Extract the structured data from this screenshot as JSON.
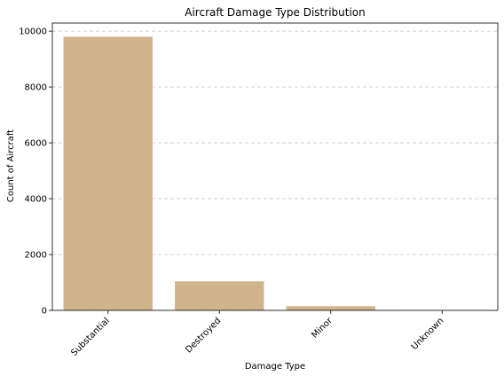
{
  "chart_data": {
    "type": "bar",
    "title": "Aircraft Damage Type Distribution",
    "xlabel": "Damage Type",
    "ylabel": "Count of Aircraft",
    "categories": [
      "Substantial",
      "Destroyed",
      "Minor",
      "Unknown"
    ],
    "values": [
      9800,
      1040,
      150,
      5
    ],
    "ylim": [
      0,
      10290
    ],
    "yticks": [
      0,
      2000,
      4000,
      6000,
      8000,
      10000
    ],
    "ytick_labels": [
      "0",
      "2000",
      "4000",
      "6000",
      "8000",
      "10000"
    ],
    "grid": "y-dashed",
    "bar_color": "#d2b48c",
    "grid_color": "#c8c8c8"
  }
}
